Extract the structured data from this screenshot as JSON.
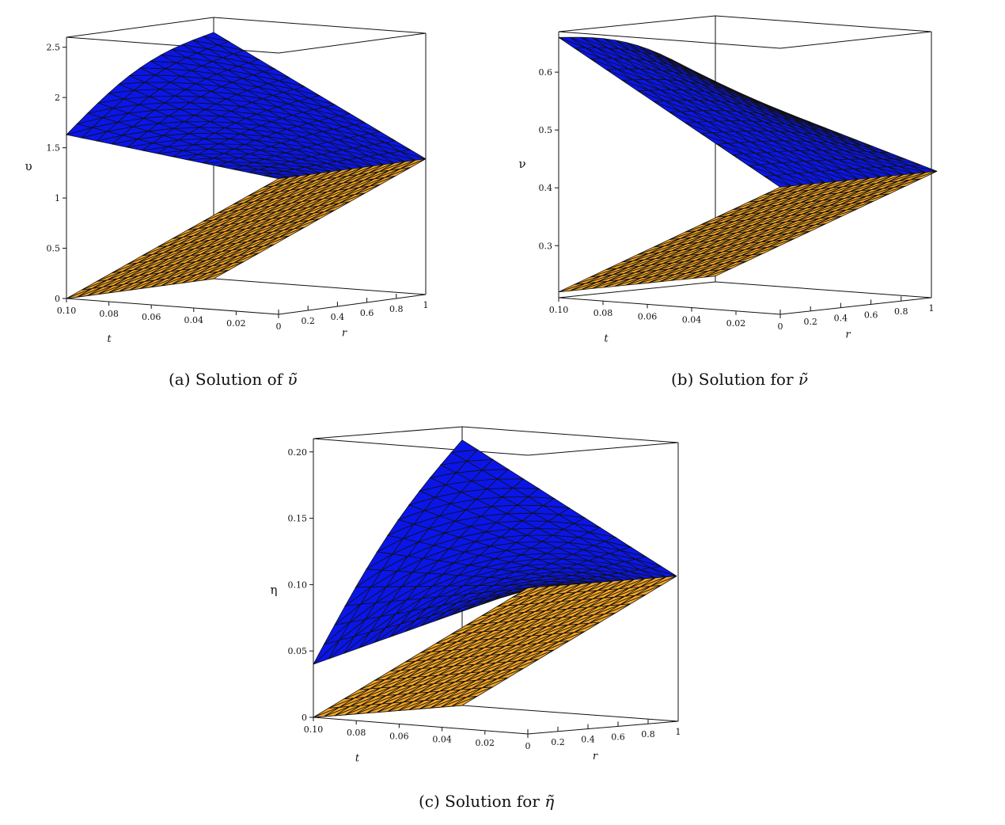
{
  "captions": [
    {
      "prefix": "(a) Solution of ",
      "symbol": "υ̃"
    },
    {
      "prefix": "(b) Solution for ",
      "symbol": "ν̃"
    },
    {
      "prefix": "(c) Solution for ",
      "symbol": "η̃"
    }
  ],
  "chart_data": [
    {
      "type": "surface",
      "zlabel": "υ",
      "xlabel": "t",
      "ylabel": "r",
      "t_ticks": [
        "0.10",
        "0.08",
        "0.06",
        "0.04",
        "0.02",
        "0"
      ],
      "r_ticks": [
        "0.2",
        "0.4",
        "0.6",
        "0.8",
        "1"
      ],
      "z_ticks": [
        "0",
        "0.5",
        "1",
        "1.5",
        "2",
        "2.5"
      ],
      "z_tick_values": [
        0,
        0.5,
        1,
        1.5,
        2,
        2.5
      ],
      "zlim": [
        0,
        2.6
      ],
      "series": [
        {
          "name": "",
          "color": "#0a16e8",
          "corners": {
            "t0_r0": 1.35,
            "t0_r1": 1.35,
            "t1_r0": 1.63,
            "t1_r1": 2.45
          }
        },
        {
          "name": "",
          "color": "#f6a623",
          "corners": {
            "t0_r0": 1.35,
            "t0_r1": 1.35,
            "t1_r0": 0.0,
            "t1_r1": 0.0
          }
        }
      ]
    },
    {
      "type": "surface",
      "zlabel": "ν",
      "xlabel": "t",
      "ylabel": "r",
      "t_ticks": [
        "0.10",
        "0.08",
        "0.06",
        "0.04",
        "0.02",
        "0"
      ],
      "r_ticks": [
        "0.2",
        "0.4",
        "0.6",
        "0.8",
        "1"
      ],
      "z_ticks": [
        "0.3",
        "0.4",
        "0.5",
        "0.6"
      ],
      "z_tick_values": [
        0.3,
        0.4,
        0.5,
        0.6
      ],
      "zlim": [
        0.21,
        0.67
      ],
      "series": [
        {
          "name": "",
          "color": "#0a16e8",
          "corners": {
            "t0_r0": 0.43,
            "t0_r1": 0.43,
            "t1_r0": 0.66,
            "t1_r1": 0.55
          }
        },
        {
          "name": "",
          "color": "#f6a623",
          "corners": {
            "t0_r0": 0.43,
            "t0_r1": 0.43,
            "t1_r0": 0.22,
            "t1_r1": 0.22
          }
        }
      ]
    },
    {
      "type": "surface",
      "zlabel": "η",
      "xlabel": "t",
      "ylabel": "r",
      "t_ticks": [
        "0.10",
        "0.08",
        "0.06",
        "0.04",
        "0.02",
        "0"
      ],
      "r_ticks": [
        "0.2",
        "0.4",
        "0.6",
        "0.8",
        "1"
      ],
      "z_ticks": [
        "0",
        "0.05",
        "0.10",
        "0.15",
        "0.20"
      ],
      "z_tick_values": [
        0,
        0.05,
        0.1,
        0.15,
        0.2
      ],
      "zlim": [
        0,
        0.21
      ],
      "series": [
        {
          "name": "",
          "color": "#0a16e8",
          "corners": {
            "t0_r0": 0.11,
            "t0_r1": 0.11,
            "t1_r0": 0.04,
            "t1_r1": 0.2
          }
        },
        {
          "name": "",
          "color": "#f6a623",
          "corners": {
            "t0_r0": 0.11,
            "t0_r1": 0.11,
            "t1_r0": 0.0,
            "t1_r1": 0.0
          }
        }
      ]
    }
  ]
}
